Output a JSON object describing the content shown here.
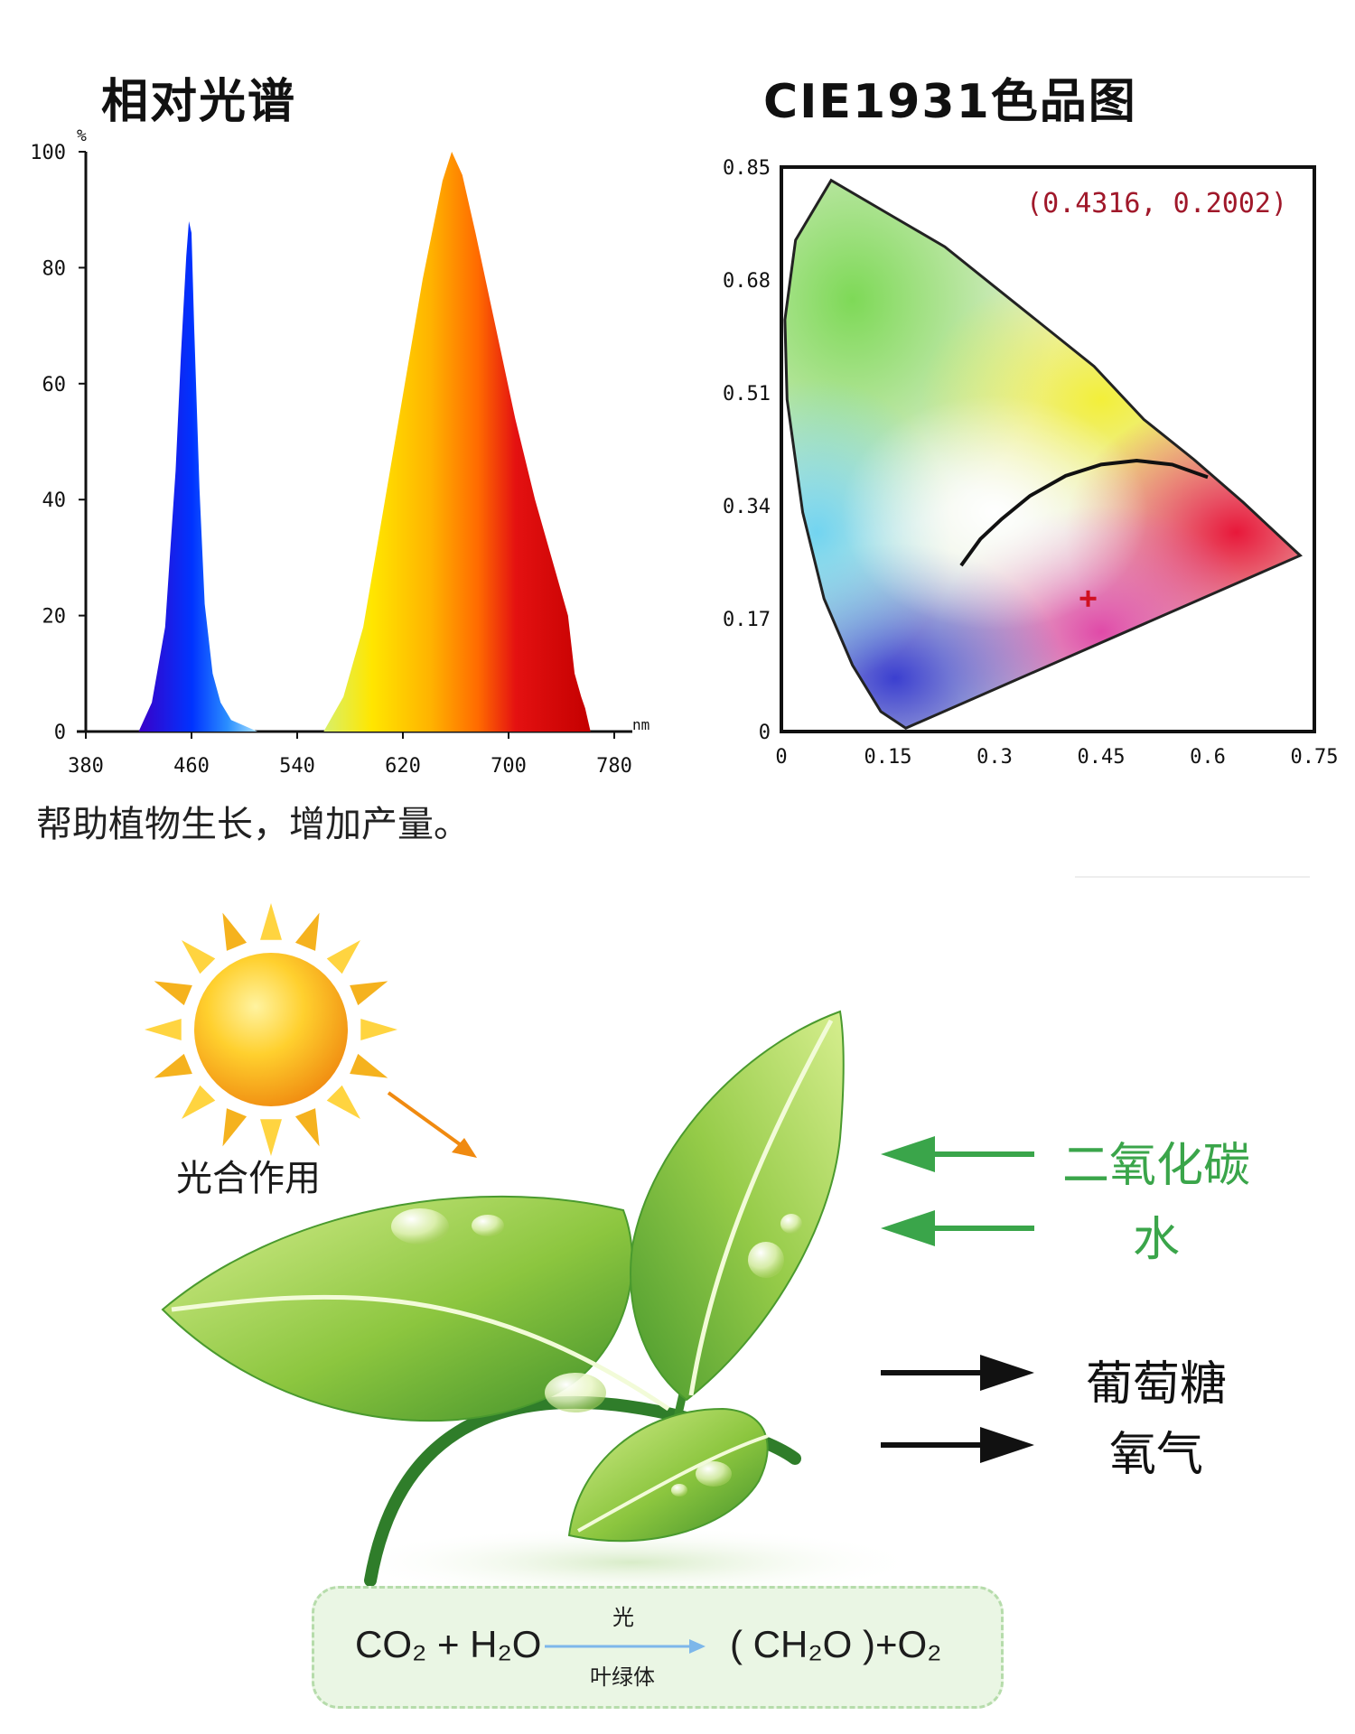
{
  "chart_data": [
    {
      "type": "area",
      "title": "相对光谱",
      "ylabel": "%",
      "xlabel": "nm",
      "xlim": [
        380,
        780
      ],
      "ylim": [
        0,
        100
      ],
      "x_ticks": [
        "380",
        "460",
        "540",
        "620",
        "700",
        "780"
      ],
      "y_ticks": [
        "0",
        "20",
        "40",
        "60",
        "80",
        "100"
      ],
      "series": [
        {
          "x": [
            420,
            430,
            440,
            448,
            452,
            456,
            458,
            460,
            462,
            466,
            470,
            476,
            482,
            490,
            500,
            510
          ],
          "y": [
            0,
            5,
            18,
            45,
            65,
            82,
            88,
            86,
            70,
            42,
            22,
            10,
            5,
            2,
            1,
            0
          ],
          "colors": [
            "#3a00c8",
            "#0033ff",
            "#2b8fff",
            "#8fd3ff"
          ]
        },
        {
          "x": [
            560,
            575,
            590,
            605,
            620,
            635,
            650,
            657,
            665,
            675,
            690,
            705,
            720,
            735,
            745,
            750,
            755,
            758,
            762
          ],
          "y": [
            0,
            6,
            18,
            38,
            58,
            78,
            95,
            100,
            96,
            86,
            70,
            54,
            40,
            28,
            20,
            10,
            6,
            4,
            0
          ],
          "colors": [
            "#d8f06a",
            "#ffe000",
            "#ffb300",
            "#ff6a00",
            "#e01010",
            "#c80000"
          ]
        }
      ],
      "grid": false
    },
    {
      "type": "scatter",
      "title": "CIE1931色品图",
      "xlim": [
        0,
        0.75
      ],
      "ylim": [
        0,
        0.85
      ],
      "x_ticks": [
        "0",
        "0.15",
        "0.3",
        "0.45",
        "0.6",
        "0.75"
      ],
      "y_ticks": [
        "0",
        "0.17",
        "0.34",
        "0.51",
        "0.68",
        "0.85"
      ],
      "point": {
        "x": 0.4316,
        "y": 0.2002,
        "label": "(0.4316, 0.2002)"
      },
      "planckian_locus": {
        "x": [
          0.253,
          0.28,
          0.31,
          0.35,
          0.4,
          0.45,
          0.5,
          0.55,
          0.6
        ],
        "y": [
          0.25,
          0.29,
          0.32,
          0.355,
          0.385,
          0.402,
          0.408,
          0.402,
          0.383
        ]
      },
      "spectral_locus": {
        "x": [
          0.175,
          0.14,
          0.1,
          0.06,
          0.03,
          0.008,
          0.005,
          0.02,
          0.07,
          0.15,
          0.23,
          0.3,
          0.37,
          0.44,
          0.51,
          0.58,
          0.65,
          0.73,
          0.175
        ],
        "y": [
          0.005,
          0.03,
          0.1,
          0.2,
          0.33,
          0.5,
          0.62,
          0.74,
          0.83,
          0.78,
          0.73,
          0.67,
          0.61,
          0.55,
          0.47,
          0.41,
          0.345,
          0.265,
          0.005
        ]
      },
      "grid": false
    }
  ],
  "texts": {
    "caption": "帮助植物生长，增加产量。",
    "photosynthesis": "光合作用",
    "co2": "二氧化碳",
    "water": "水",
    "glucose": "葡萄糖",
    "oxygen": "氧气"
  },
  "formula": {
    "left": "CO₂ + H₂O",
    "top": "光",
    "bottom": "叶绿体",
    "right": "( CH₂O )+O₂"
  },
  "colors": {
    "green_accent": "#3aa54a",
    "arrow_black": "#111111",
    "sun_orange": "#f29c1f",
    "formula_bg": "#eaf6e4",
    "formula_arrow": "#7db7ea"
  }
}
